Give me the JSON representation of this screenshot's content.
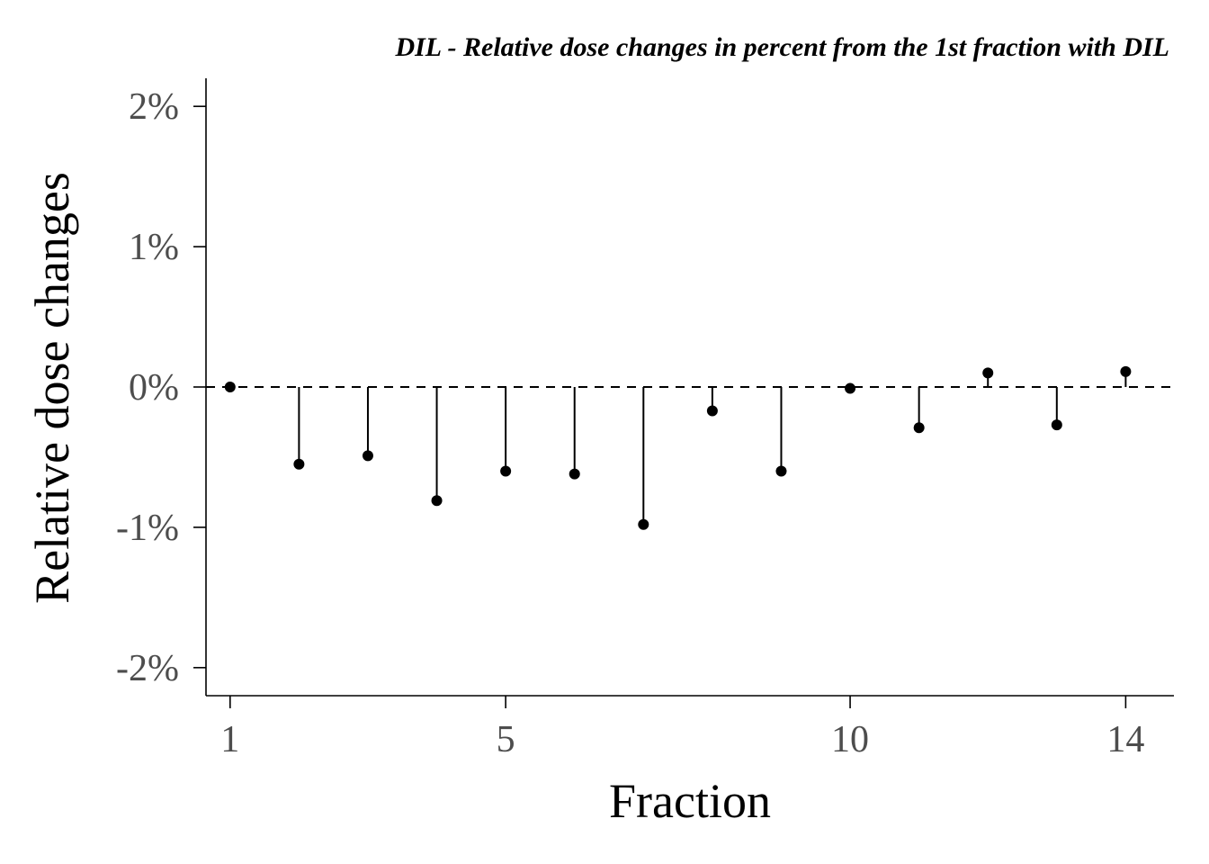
{
  "chart_data": {
    "type": "lollipop",
    "title": "DIL - Relative dose changes in percent from the 1st fraction with DIL",
    "xlabel": "Fraction",
    "ylabel": "Relative dose changes",
    "xlim": [
      0.65,
      14.7
    ],
    "ylim": [
      -2.2,
      2.2
    ],
    "x_ticks": [
      1,
      5,
      10,
      14
    ],
    "y_ticks": [
      2,
      1,
      0,
      -1,
      -2
    ],
    "y_tick_labels": [
      "2%",
      "1%",
      "0%",
      "-1%",
      "-2%"
    ],
    "x": [
      1,
      2,
      3,
      4,
      5,
      6,
      7,
      8,
      9,
      10,
      11,
      12,
      13,
      14
    ],
    "values": [
      0,
      -0.55,
      -0.49,
      -0.81,
      -0.6,
      -0.62,
      -0.98,
      -0.17,
      -0.6,
      -0.01,
      -0.29,
      0.1,
      -0.27,
      0.11
    ],
    "reference_line": 0,
    "grid": false,
    "colors": {
      "points": "#000000",
      "tick_labels": "#4d4d4d"
    }
  }
}
